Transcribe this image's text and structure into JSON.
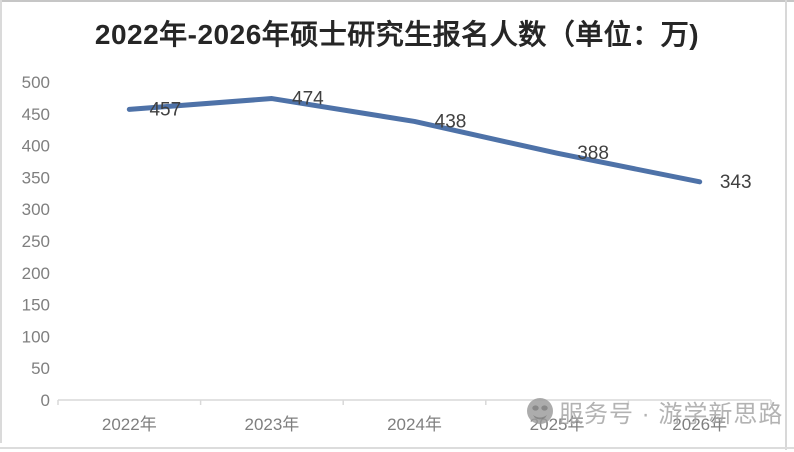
{
  "title": "2022年-2026年硕士研究生报名人数（单位：万)",
  "chart_data": {
    "type": "line",
    "title": "2022年-2026年硕士研究生报名人数（单位：万)",
    "categories": [
      "2022年",
      "2023年",
      "2024年",
      "2025年",
      "2026年"
    ],
    "values": [
      457,
      474,
      438,
      388,
      343
    ],
    "series": [
      {
        "name": "硕士研究生报名人数",
        "values": [
          457,
          474,
          438,
          388,
          343
        ]
      }
    ],
    "xlabel": "",
    "ylabel": "",
    "unit": "万",
    "ylim": [
      0,
      500
    ],
    "ytick_step": 50,
    "yticks": [
      0,
      50,
      100,
      150,
      200,
      250,
      300,
      350,
      400,
      450,
      500
    ],
    "grid": false,
    "legend": "none",
    "data_labels_shown": true,
    "line_color": "#4e72a8",
    "axis_color": "#d9d9d9",
    "tick_label_color": "#7f7f7f",
    "data_label_color": "#404040"
  },
  "watermark": {
    "icon": "official-account-logo-icon",
    "text": "服务号 · 游学新思路",
    "color": "#a3a3a3"
  }
}
